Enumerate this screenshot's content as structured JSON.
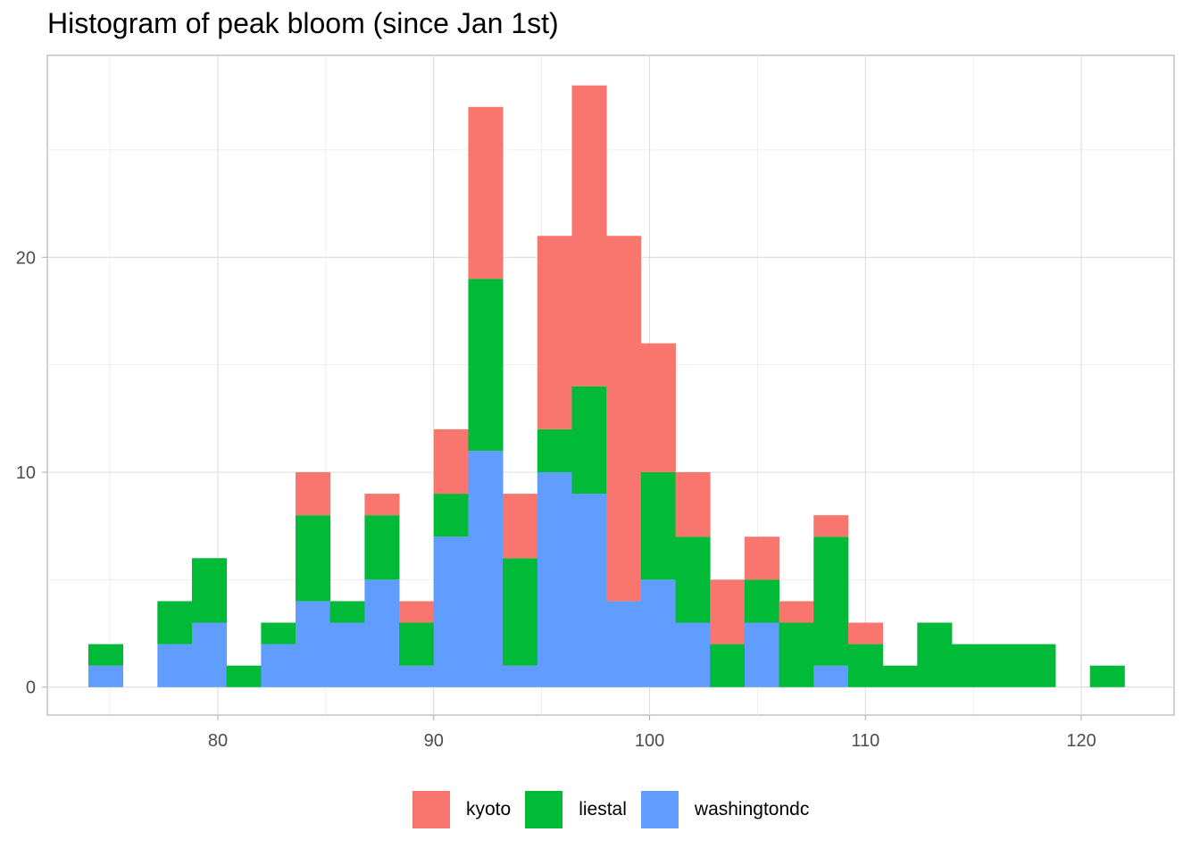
{
  "chart_data": {
    "type": "bar",
    "subtype": "stacked-histogram",
    "title": "Histogram of peak bloom (since Jan 1st)",
    "xlabel": "",
    "ylabel": "",
    "xlim": [
      72.1,
      124.3
    ],
    "ylim": [
      -1.3,
      29.4
    ],
    "xticks": [
      80,
      90,
      100,
      110,
      120
    ],
    "yticks": [
      0,
      10,
      20
    ],
    "grid": true,
    "legend_position": "bottom",
    "bin_width": 1.6,
    "bin_centers": [
      74.8,
      78.0,
      79.6,
      81.2,
      82.8,
      84.4,
      86.0,
      87.6,
      89.2,
      90.8,
      92.4,
      94.0,
      95.6,
      97.2,
      98.8,
      100.4,
      102.0,
      103.6,
      105.2,
      106.8,
      108.4,
      110.0,
      111.6,
      113.2,
      114.8,
      116.4,
      118.0,
      121.2
    ],
    "series": [
      {
        "name": "kyoto",
        "color": "#F8766D",
        "values": [
          0,
          0,
          0,
          0,
          0,
          2,
          0,
          1,
          1,
          3,
          8,
          3,
          9,
          14,
          17,
          6,
          3,
          3,
          2,
          1,
          1,
          1,
          0,
          0,
          0,
          0,
          0,
          0
        ]
      },
      {
        "name": "liestal",
        "color": "#00BA38",
        "values": [
          1,
          2,
          3,
          1,
          1,
          4,
          1,
          3,
          2,
          2,
          8,
          5,
          2,
          5,
          0,
          5,
          4,
          2,
          2,
          3,
          6,
          2,
          1,
          3,
          2,
          2,
          2,
          1
        ]
      },
      {
        "name": "washingtondc",
        "color": "#619CFF",
        "values": [
          1,
          2,
          3,
          0,
          2,
          4,
          3,
          5,
          1,
          7,
          11,
          1,
          10,
          9,
          4,
          5,
          3,
          0,
          3,
          0,
          1,
          0,
          0,
          0,
          0,
          0,
          0,
          0
        ]
      }
    ]
  }
}
